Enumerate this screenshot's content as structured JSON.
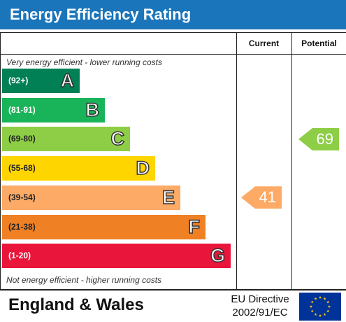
{
  "header": {
    "title": "Energy Efficiency Rating"
  },
  "columns": {
    "current": "Current",
    "potential": "Potential"
  },
  "notes": {
    "top": "Very energy efficient - lower running costs",
    "bottom": "Not energy efficient - higher running costs"
  },
  "chart_data": {
    "type": "bar",
    "title": "Energy Efficiency Rating",
    "categories": [
      "A",
      "B",
      "C",
      "D",
      "E",
      "F",
      "G"
    ],
    "bands": [
      {
        "range": "(92+)",
        "letter": "A",
        "color": "#008054",
        "range_color": "#ffffff",
        "min": 92,
        "max": 100
      },
      {
        "range": "(81-91)",
        "letter": "B",
        "color": "#19b459",
        "range_color": "#ffffff",
        "min": 81,
        "max": 91
      },
      {
        "range": "(69-80)",
        "letter": "C",
        "color": "#8dce46",
        "range_color": "#222222",
        "min": 69,
        "max": 80
      },
      {
        "range": "(55-68)",
        "letter": "D",
        "color": "#ffd500",
        "range_color": "#222222",
        "min": 55,
        "max": 68
      },
      {
        "range": "(39-54)",
        "letter": "E",
        "color": "#fcaa65",
        "range_color": "#222222",
        "min": 39,
        "max": 54
      },
      {
        "range": "(21-38)",
        "letter": "F",
        "color": "#ef8023",
        "range_color": "#222222",
        "min": 21,
        "max": 38
      },
      {
        "range": "(1-20)",
        "letter": "G",
        "color": "#e9153b",
        "range_color": "#ffffff",
        "min": 1,
        "max": 20
      }
    ],
    "current": {
      "value": 41,
      "band": "E",
      "color": "#fcaa65"
    },
    "potential": {
      "value": 69,
      "band": "C",
      "color": "#8dce46"
    }
  },
  "footer": {
    "country": "England & Wales",
    "directive_line1": "EU Directive",
    "directive_line2": "2002/91/EC"
  },
  "icons": {
    "flag": "eu-flag-icon"
  }
}
